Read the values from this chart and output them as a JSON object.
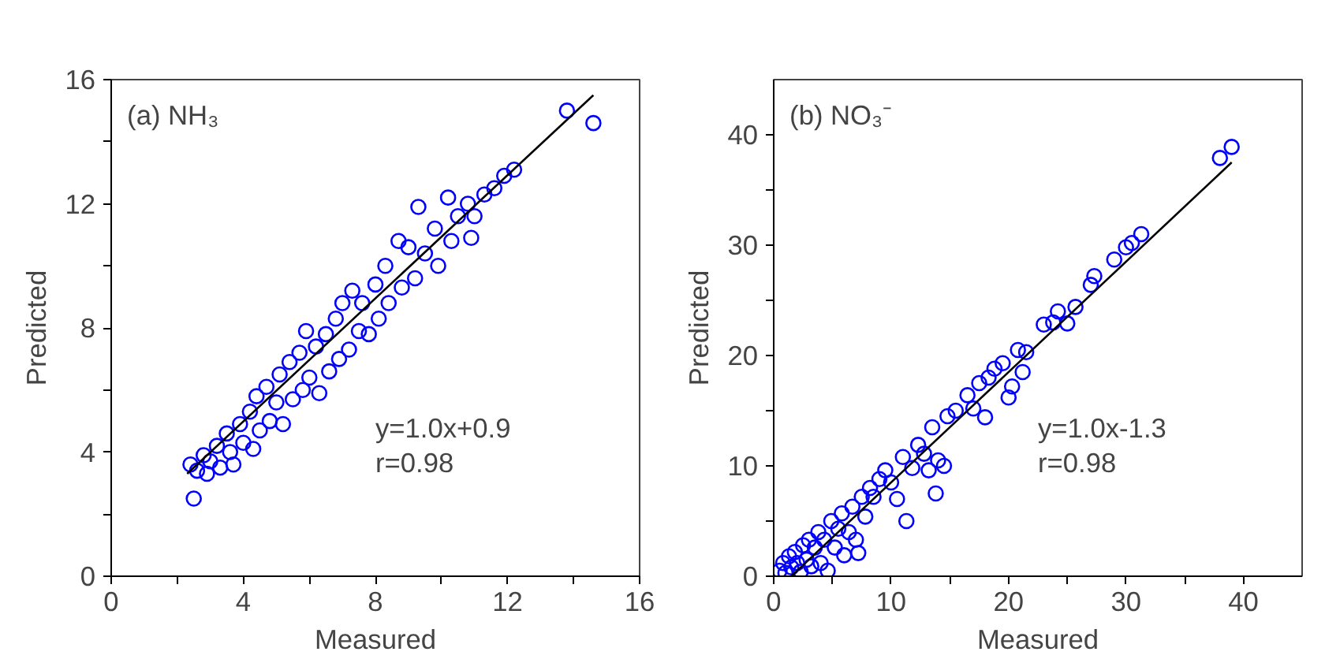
{
  "chart_data": [
    {
      "type": "scatter",
      "title": "(a) NH₃",
      "xlabel": "Measured",
      "ylabel": "Predicted",
      "xlim": [
        0,
        16
      ],
      "ylim": [
        0,
        16
      ],
      "xticks": [
        0,
        {
          "value": 2,
          "label": null
        },
        4,
        {
          "value": 6,
          "label": null
        },
        8,
        {
          "value": 10,
          "label": null
        },
        12,
        {
          "value": 14,
          "label": null
        },
        16
      ],
      "yticks": [
        0,
        {
          "value": 2,
          "label": null
        },
        4,
        {
          "value": 6,
          "label": null
        },
        8,
        {
          "value": 10,
          "label": null
        },
        12,
        {
          "value": 14,
          "label": null
        },
        16
      ],
      "grid": false,
      "marker": "circle",
      "annotations": [
        "y=1.0x+0.9",
        "r=0.98"
      ],
      "series": [
        {
          "color": "#0000ff",
          "x": [
            2.4,
            2.5,
            2.6,
            2.8,
            2.9,
            3.0,
            3.2,
            3.3,
            3.5,
            3.6,
            3.7,
            3.9,
            4.0,
            4.2,
            4.3,
            4.4,
            4.5,
            4.7,
            4.8,
            5.0,
            5.1,
            5.2,
            5.4,
            5.5,
            5.7,
            5.8,
            5.9,
            6.0,
            6.2,
            6.3,
            6.5,
            6.6,
            6.8,
            6.9,
            7.0,
            7.2,
            7.3,
            7.5,
            7.6,
            7.8,
            8.0,
            8.1,
            8.3,
            8.4,
            8.7,
            8.8,
            9.0,
            9.2,
            9.3,
            9.5,
            9.8,
            9.9,
            10.2,
            10.3,
            10.5,
            10.8,
            10.9,
            11.0,
            11.3,
            11.6,
            11.9,
            12.2,
            13.8,
            14.6
          ],
          "values": [
            3.6,
            2.5,
            3.4,
            3.9,
            3.3,
            3.7,
            4.2,
            3.5,
            4.6,
            4.0,
            3.6,
            4.9,
            4.3,
            5.3,
            4.1,
            5.8,
            4.7,
            6.1,
            5.0,
            5.6,
            6.5,
            4.9,
            6.9,
            5.7,
            7.2,
            6.0,
            7.9,
            6.4,
            7.4,
            5.9,
            7.8,
            6.6,
            8.3,
            7.0,
            8.8,
            7.3,
            9.2,
            7.9,
            8.8,
            7.8,
            9.4,
            8.3,
            10.0,
            8.8,
            10.8,
            9.3,
            10.6,
            9.6,
            11.9,
            10.4,
            11.2,
            10.0,
            12.2,
            10.8,
            11.6,
            12.0,
            10.9,
            11.6,
            12.3,
            12.5,
            12.9,
            13.1,
            15.0,
            14.6
          ]
        },
        {
          "type": "line",
          "color": "#000000",
          "marker": "none",
          "x": [
            2.3,
            14.6
          ],
          "values": [
            3.3,
            15.5
          ]
        }
      ]
    },
    {
      "type": "scatter",
      "title": "(b) NO₃⁻",
      "xlabel": "Measured",
      "ylabel": "Predicted",
      "xlim": [
        0,
        45
      ],
      "ylim": [
        0,
        45
      ],
      "xticks": [
        0,
        {
          "value": 5,
          "label": null
        },
        10,
        {
          "value": 15,
          "label": null
        },
        20,
        {
          "value": 25,
          "label": null
        },
        30,
        {
          "value": 35,
          "label": null
        },
        40
      ],
      "yticks": [
        0,
        {
          "value": 5,
          "label": null
        },
        10,
        {
          "value": 15,
          "label": null
        },
        20,
        {
          "value": 25,
          "label": null
        },
        30,
        {
          "value": 35,
          "label": null
        },
        40
      ],
      "grid": false,
      "marker": "circle",
      "annotations": [
        "y=1.0x-1.3",
        "r=0.98"
      ],
      "series": [
        {
          "color": "#0000ff",
          "x": [
            0.5,
            0.8,
            1.0,
            1.3,
            1.5,
            1.8,
            2.0,
            2.3,
            2.5,
            2.8,
            3.0,
            3.2,
            3.5,
            3.8,
            4.0,
            4.3,
            4.6,
            4.9,
            5.2,
            5.5,
            5.8,
            6.0,
            6.4,
            6.7,
            7.0,
            7.2,
            7.5,
            7.8,
            8.2,
            8.5,
            9.0,
            9.5,
            10.0,
            10.5,
            11.0,
            11.3,
            11.8,
            12.3,
            12.8,
            13.2,
            13.5,
            13.8,
            14.0,
            14.5,
            14.8,
            15.5,
            16.5,
            17.0,
            17.5,
            18.0,
            18.3,
            18.8,
            19.5,
            20.0,
            20.3,
            20.8,
            21.2,
            21.5,
            23.0,
            23.8,
            24.2,
            25.0,
            25.7,
            27.0,
            27.3,
            29.0,
            30.0,
            30.5,
            31.3,
            38.0,
            39.0
          ],
          "values": [
            0.5,
            1.2,
            0.3,
            1.8,
            0.8,
            2.2,
            1.2,
            0.4,
            2.8,
            1.5,
            3.3,
            0.9,
            2.6,
            4.0,
            1.2,
            3.3,
            0.5,
            5.0,
            2.6,
            4.3,
            5.7,
            1.9,
            4.0,
            6.3,
            3.3,
            2.1,
            7.2,
            5.4,
            8.0,
            7.2,
            8.8,
            9.6,
            8.5,
            7.0,
            10.8,
            5.0,
            9.8,
            11.9,
            11.1,
            9.6,
            13.5,
            7.5,
            10.5,
            10.0,
            14.5,
            15.0,
            16.4,
            15.2,
            17.5,
            14.4,
            18.0,
            18.8,
            19.3,
            16.2,
            17.2,
            20.5,
            18.5,
            20.3,
            22.8,
            23.0,
            24.0,
            22.9,
            24.4,
            26.4,
            27.2,
            28.7,
            29.8,
            30.2,
            31.0,
            37.9,
            38.9
          ]
        },
        {
          "type": "line",
          "color": "#000000",
          "marker": "none",
          "x": [
            1.5,
            39.0
          ],
          "values": [
            0.0,
            37.5
          ]
        }
      ]
    }
  ]
}
